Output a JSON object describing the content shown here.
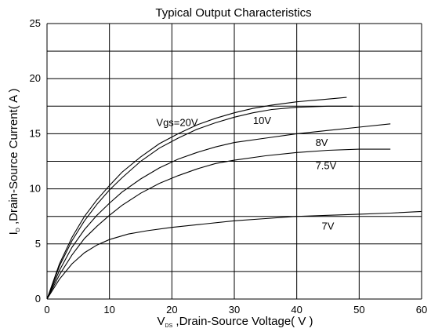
{
  "chart_data": {
    "type": "line",
    "title": "Typical Output Characteristics",
    "xlabel": {
      "main": "V",
      "sub": "DS",
      "rest": " ,Drain-Source Voltage( V )"
    },
    "ylabel": {
      "main": "I",
      "sub": "D",
      "rest": " ,Drain-Source Current( A )"
    },
    "xlim": [
      0,
      60
    ],
    "ylim": [
      0,
      25
    ],
    "x_ticks": [
      0,
      10,
      20,
      30,
      40,
      50,
      60
    ],
    "y_ticks": [
      0,
      5,
      10,
      15,
      20,
      25
    ],
    "grid": true,
    "series": [
      {
        "name": "Vgs=20V",
        "points": [
          [
            0,
            0
          ],
          [
            2,
            3.2
          ],
          [
            4,
            5.6
          ],
          [
            6,
            7.5
          ],
          [
            8,
            9.0
          ],
          [
            10,
            10.3
          ],
          [
            12,
            11.5
          ],
          [
            15,
            12.9
          ],
          [
            18,
            14.1
          ],
          [
            21,
            15.0
          ],
          [
            24,
            15.8
          ],
          [
            27,
            16.4
          ],
          [
            30,
            16.9
          ],
          [
            33,
            17.3
          ],
          [
            36,
            17.6
          ],
          [
            40,
            17.9
          ],
          [
            44,
            18.1
          ],
          [
            48,
            18.3
          ]
        ]
      },
      {
        "name": "10V",
        "points": [
          [
            0,
            0
          ],
          [
            2,
            3.0
          ],
          [
            4,
            5.3
          ],
          [
            6,
            7.1
          ],
          [
            8,
            8.6
          ],
          [
            10,
            9.9
          ],
          [
            12,
            11.0
          ],
          [
            15,
            12.5
          ],
          [
            18,
            13.7
          ],
          [
            21,
            14.6
          ],
          [
            24,
            15.4
          ],
          [
            27,
            16.0
          ],
          [
            30,
            16.5
          ],
          [
            33,
            16.9
          ],
          [
            36,
            17.2
          ],
          [
            40,
            17.4
          ],
          [
            45,
            17.5
          ],
          [
            49,
            17.5
          ]
        ]
      },
      {
        "name": "8V",
        "points": [
          [
            0,
            0
          ],
          [
            2,
            2.6
          ],
          [
            4,
            4.7
          ],
          [
            6,
            6.3
          ],
          [
            8,
            7.6
          ],
          [
            10,
            8.7
          ],
          [
            12,
            9.7
          ],
          [
            15,
            10.9
          ],
          [
            18,
            11.9
          ],
          [
            21,
            12.7
          ],
          [
            24,
            13.3
          ],
          [
            27,
            13.8
          ],
          [
            30,
            14.2
          ],
          [
            35,
            14.6
          ],
          [
            40,
            15.0
          ],
          [
            45,
            15.3
          ],
          [
            50,
            15.6
          ],
          [
            55,
            15.9
          ]
        ]
      },
      {
        "name": "7.5V",
        "points": [
          [
            0,
            0
          ],
          [
            2,
            2.2
          ],
          [
            4,
            4.0
          ],
          [
            6,
            5.5
          ],
          [
            8,
            6.6
          ],
          [
            10,
            7.6
          ],
          [
            12,
            8.5
          ],
          [
            15,
            9.6
          ],
          [
            18,
            10.5
          ],
          [
            21,
            11.2
          ],
          [
            24,
            11.8
          ],
          [
            27,
            12.3
          ],
          [
            30,
            12.6
          ],
          [
            35,
            13.0
          ],
          [
            40,
            13.3
          ],
          [
            45,
            13.5
          ],
          [
            50,
            13.6
          ],
          [
            55,
            13.6
          ]
        ]
      },
      {
        "name": "7V",
        "points": [
          [
            0,
            0
          ],
          [
            2,
            1.8
          ],
          [
            4,
            3.2
          ],
          [
            6,
            4.2
          ],
          [
            8,
            4.9
          ],
          [
            10,
            5.4
          ],
          [
            13,
            5.9
          ],
          [
            16,
            6.2
          ],
          [
            20,
            6.5
          ],
          [
            25,
            6.8
          ],
          [
            30,
            7.1
          ],
          [
            35,
            7.3
          ],
          [
            40,
            7.5
          ],
          [
            45,
            7.6
          ],
          [
            50,
            7.7
          ],
          [
            55,
            7.8
          ],
          [
            60,
            7.95
          ]
        ]
      }
    ],
    "curve_labels": [
      {
        "text": "Vgs=20V",
        "x": 17.5,
        "y": 15.7
      },
      {
        "text": "10V",
        "x": 33,
        "y": 15.9
      },
      {
        "text": "8V",
        "x": 43,
        "y": 13.9
      },
      {
        "text": "7.5V",
        "x": 43,
        "y": 11.8
      },
      {
        "text": "7V",
        "x": 44,
        "y": 6.3
      }
    ]
  }
}
